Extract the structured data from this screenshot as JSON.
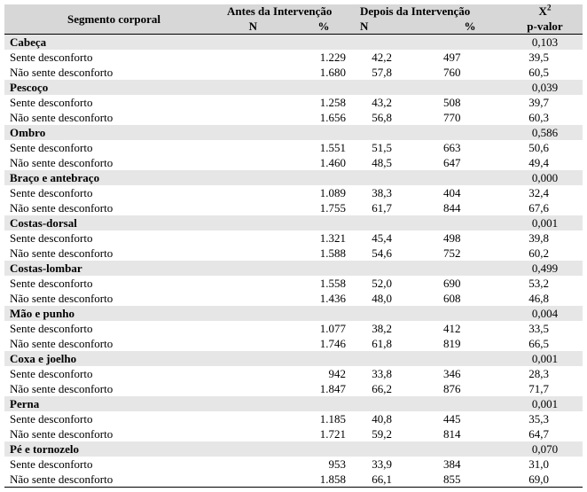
{
  "header": {
    "segment_label": "Segmento corporal",
    "before_label": "Antes da Intervenção",
    "after_label": "Depois da Intervenção",
    "n_label": "N",
    "pct_label": "%",
    "chi_label": "X",
    "chi_sup": "2",
    "pvalue_label": "p-valor"
  },
  "segments": [
    {
      "name": "Cabeça",
      "p": "0,103",
      "rows": [
        {
          "label": "Sente desconforto",
          "n_before": "1.229",
          "pct_before": "42,2",
          "n_after": "497",
          "pct_after": "39,5"
        },
        {
          "label": "Não sente desconforto",
          "n_before": "1.680",
          "pct_before": "57,8",
          "n_after": "760",
          "pct_after": "60,5"
        }
      ]
    },
    {
      "name": "Pescoço",
      "p": "0,039",
      "rows": [
        {
          "label": "Sente desconforto",
          "n_before": "1.258",
          "pct_before": "43,2",
          "n_after": "508",
          "pct_after": "39,7"
        },
        {
          "label": "Não sente desconforto",
          "n_before": "1.656",
          "pct_before": "56,8",
          "n_after": "770",
          "pct_after": "60,3"
        }
      ]
    },
    {
      "name": "Ombro",
      "p": "0,586",
      "rows": [
        {
          "label": "Sente desconforto",
          "n_before": "1.551",
          "pct_before": "51,5",
          "n_after": "663",
          "pct_after": "50,6"
        },
        {
          "label": "Não sente desconforto",
          "n_before": "1.460",
          "pct_before": "48,5",
          "n_after": "647",
          "pct_after": "49,4"
        }
      ]
    },
    {
      "name": "Braço e antebraço",
      "p": "0,000",
      "rows": [
        {
          "label": "Sente desconforto",
          "n_before": "1.089",
          "pct_before": "38,3",
          "n_after": "404",
          "pct_after": "32,4"
        },
        {
          "label": "Não sente desconforto",
          "n_before": "1.755",
          "pct_before": "61,7",
          "n_after": "844",
          "pct_after": "67,6"
        }
      ]
    },
    {
      "name": "Costas-dorsal",
      "p": "0,001",
      "rows": [
        {
          "label": "Sente desconforto",
          "n_before": "1.321",
          "pct_before": "45,4",
          "n_after": "498",
          "pct_after": "39,8"
        },
        {
          "label": "Não sente desconforto",
          "n_before": "1.588",
          "pct_before": "54,6",
          "n_after": "752",
          "pct_after": "60,2"
        }
      ]
    },
    {
      "name": "Costas-lombar",
      "p": "0,499",
      "rows": [
        {
          "label": "Sente desconforto",
          "n_before": "1.558",
          "pct_before": "52,0",
          "n_after": "690",
          "pct_after": "53,2"
        },
        {
          "label": "Não sente desconforto",
          "n_before": "1.436",
          "pct_before": "48,0",
          "n_after": "608",
          "pct_after": "46,8"
        }
      ]
    },
    {
      "name": "Mão e punho",
      "p": "0,004",
      "rows": [
        {
          "label": "Sente desconforto",
          "n_before": "1.077",
          "pct_before": "38,2",
          "n_after": "412",
          "pct_after": "33,5"
        },
        {
          "label": "Não sente desconforto",
          "n_before": "1.746",
          "pct_before": "61,8",
          "n_after": "819",
          "pct_after": "66,5"
        }
      ]
    },
    {
      "name": "Coxa e joelho",
      "p": "0,001",
      "rows": [
        {
          "label": "Sente desconforto",
          "n_before": "942",
          "pct_before": "33,8",
          "n_after": "346",
          "pct_after": "28,3"
        },
        {
          "label": "Não sente desconforto",
          "n_before": "1.847",
          "pct_before": "66,2",
          "n_after": "876",
          "pct_after": "71,7"
        }
      ]
    },
    {
      "name": "Perna",
      "p": "0,001",
      "rows": [
        {
          "label": "Sente desconforto",
          "n_before": "1.185",
          "pct_before": "40,8",
          "n_after": "445",
          "pct_after": "35,3"
        },
        {
          "label": "Não sente desconforto",
          "n_before": "1.721",
          "pct_before": "59,2",
          "n_after": "814",
          "pct_after": "64,7"
        }
      ]
    },
    {
      "name": "Pé e tornozelo",
      "p": "0,070",
      "rows": [
        {
          "label": "Sente desconforto",
          "n_before": "953",
          "pct_before": "33,9",
          "n_after": "384",
          "pct_after": "31,0"
        },
        {
          "label": "Não sente desconforto",
          "n_before": "1.858",
          "pct_before": "66,1",
          "n_after": "855",
          "pct_after": "69,0"
        }
      ]
    }
  ]
}
